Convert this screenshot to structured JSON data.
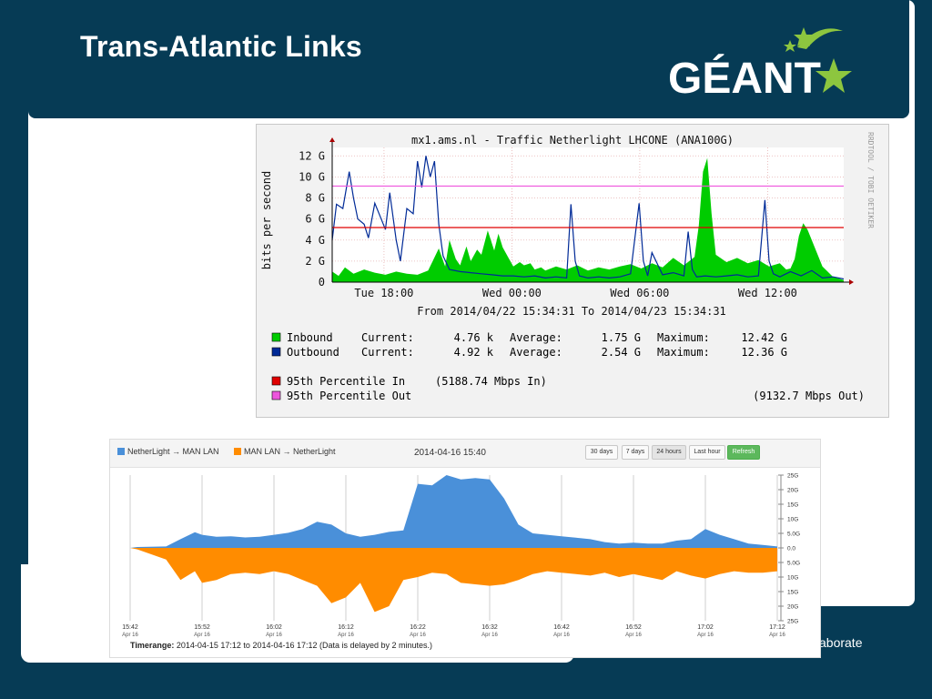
{
  "slide": {
    "title": "Trans-Atlantic Links",
    "logo_text": "GÉANT",
    "footer_text": "aborate",
    "colors": {
      "background": "#063b55",
      "logo_star": "#8dc63f"
    }
  },
  "chart_data": [
    {
      "type": "area",
      "title": "mx1.ams.nl - Traffic Netherlight LHCONE (ANA100G)",
      "ylabel": "bits per second",
      "side_label": "RRDTOOL / TOBI OETIKER",
      "y_ticks": [
        "12 G",
        "10 G",
        "8 G",
        "6 G",
        "4 G",
        "2 G",
        "0"
      ],
      "y_tick_values": [
        12,
        10,
        8,
        6,
        4,
        2,
        0
      ],
      "ylim": [
        0,
        12.8
      ],
      "x_ticks": [
        "Tue 18:00",
        "Wed 00:00",
        "Wed 06:00",
        "Wed 12:00"
      ],
      "x_tick_hours": [
        2.43,
        8.43,
        14.43,
        20.43
      ],
      "xlim_hours": [
        0,
        24
      ],
      "time_range": "From 2014/04/22 15:34:31 To 2014/04/23 15:34:31",
      "series": [
        {
          "name": "Inbound",
          "color": "#00cc00",
          "current": "4.76 k",
          "average": "1.75 G",
          "maximum": "12.42 G",
          "x": [
            0,
            0.3,
            0.6,
            1.0,
            1.5,
            2.0,
            2.5,
            3.0,
            3.5,
            4.0,
            4.5,
            5.0,
            5.3,
            5.5,
            5.8,
            6.0,
            6.3,
            6.5,
            6.8,
            7.0,
            7.3,
            7.6,
            7.8,
            8.0,
            8.3,
            8.5,
            8.8,
            9.0,
            9.3,
            9.5,
            9.8,
            10.0,
            10.5,
            11.0,
            11.5,
            12.0,
            12.5,
            13.0,
            13.5,
            14.0,
            14.5,
            15.0,
            15.5,
            16.0,
            16.5,
            17.0,
            17.2,
            17.4,
            17.6,
            17.8,
            18.0,
            18.5,
            19.0,
            19.5,
            20.0,
            20.5,
            21.0,
            21.3,
            21.5,
            21.7,
            21.9,
            22.1,
            22.3,
            22.6,
            23.0,
            23.5,
            24.0
          ],
          "values": [
            1.0,
            0.6,
            1.4,
            0.8,
            1.2,
            0.9,
            0.7,
            1.0,
            0.8,
            0.7,
            1.1,
            3.2,
            1.5,
            4.0,
            2.2,
            1.6,
            3.4,
            2.0,
            3.1,
            2.6,
            4.9,
            3.0,
            4.6,
            3.3,
            2.2,
            1.5,
            1.9,
            1.6,
            1.8,
            1.2,
            1.4,
            1.1,
            1.5,
            1.2,
            1.6,
            1.1,
            1.4,
            1.2,
            1.5,
            1.7,
            1.3,
            1.8,
            1.4,
            2.3,
            1.6,
            2.4,
            5.4,
            10.5,
            11.8,
            6.5,
            2.6,
            1.9,
            2.3,
            1.8,
            2.1,
            1.5,
            1.8,
            1.2,
            1.3,
            2.2,
            4.4,
            5.6,
            5.0,
            3.5,
            1.5,
            0.5,
            0.2
          ]
        },
        {
          "name": "Outbound",
          "color": "#002a97",
          "current": "4.92 k",
          "average": "2.54 G",
          "maximum": "12.36 G",
          "x": [
            0,
            0.2,
            0.5,
            0.8,
            1.0,
            1.2,
            1.5,
            1.7,
            2.0,
            2.2,
            2.5,
            2.7,
            3.0,
            3.2,
            3.5,
            3.8,
            4.0,
            4.2,
            4.4,
            4.6,
            4.8,
            5.0,
            5.2,
            5.5,
            6.0,
            6.5,
            7.0,
            7.5,
            8.0,
            8.5,
            9.0,
            9.5,
            10.0,
            10.5,
            11.0,
            11.2,
            11.4,
            11.6,
            12.0,
            12.5,
            13.0,
            13.5,
            14.0,
            14.4,
            14.6,
            14.8,
            15.0,
            15.5,
            16.0,
            16.5,
            16.7,
            16.9,
            17.1,
            17.5,
            18.0,
            18.5,
            19.0,
            19.5,
            20.0,
            20.3,
            20.5,
            20.7,
            21.0,
            21.5,
            22.0,
            22.5,
            23.0,
            23.5,
            24.0
          ],
          "values": [
            4.0,
            7.4,
            7.0,
            10.5,
            8.0,
            6.0,
            5.5,
            4.2,
            7.5,
            6.5,
            5.0,
            8.5,
            4.0,
            2.0,
            7.0,
            6.5,
            11.5,
            9.0,
            12.0,
            10.0,
            11.5,
            5.5,
            2.5,
            1.2,
            1.0,
            0.9,
            0.8,
            0.7,
            0.6,
            0.6,
            0.5,
            0.6,
            0.4,
            0.5,
            0.4,
            7.4,
            2.0,
            0.6,
            0.4,
            0.5,
            0.4,
            0.5,
            0.8,
            7.5,
            2.0,
            0.6,
            2.8,
            0.7,
            0.9,
            0.6,
            4.8,
            1.2,
            0.5,
            0.6,
            0.5,
            0.6,
            0.7,
            0.5,
            0.6,
            7.8,
            2.0,
            0.8,
            0.5,
            1.0,
            0.6,
            1.1,
            0.4,
            0.5,
            0.3
          ]
        },
        {
          "name": "95th Percentile In",
          "color": "#e00000",
          "value": 5.19,
          "label": "(5188.74 Mbps In)"
        },
        {
          "name": "95th Percentile Out",
          "color": "#ee55dd",
          "value": 9.13,
          "label": "(9132.7 Mbps Out)"
        }
      ],
      "legend_labels": {
        "current": "Current:",
        "average": "Average:",
        "maximum": "Maximum:"
      }
    },
    {
      "type": "area",
      "date": "2014-04-16 15:40",
      "buttons": [
        "30 days",
        "7 days",
        "24 hours",
        "Last hour",
        "Refresh"
      ],
      "active_button": "24 hours",
      "timerange_label": "Timerange:",
      "timerange": "2014-04-15 17:12 to 2014-04-16 17:12 (Data is delayed by 2 minutes.)",
      "y_ticks": [
        "25G",
        "20G",
        "15G",
        "10G",
        "5.0G",
        "0.0",
        "5.0G",
        "10G",
        "15G",
        "20G",
        "25G"
      ],
      "y_tick_values": [
        25,
        20,
        15,
        10,
        5,
        0,
        -5,
        -10,
        -15,
        -20,
        -25
      ],
      "ylim": [
        -25,
        25
      ],
      "x_ticks": [
        {
          "time": "15:42",
          "date": "Apr 16"
        },
        {
          "time": "15:52",
          "date": "Apr 16"
        },
        {
          "time": "16:02",
          "date": "Apr 16"
        },
        {
          "time": "16:12",
          "date": "Apr 16"
        },
        {
          "time": "16:22",
          "date": "Apr 16"
        },
        {
          "time": "16:32",
          "date": "Apr 16"
        },
        {
          "time": "16:42",
          "date": "Apr 16"
        },
        {
          "time": "16:52",
          "date": "Apr 16"
        },
        {
          "time": "17:02",
          "date": "Apr 16"
        },
        {
          "time": "17:12",
          "date": "Apr 16"
        }
      ],
      "xlim_minutes": [
        0,
        90
      ],
      "series": [
        {
          "name": "NetherLight → MAN LAN",
          "color": "#4a90d9",
          "x": [
            0,
            1,
            5,
            7,
            9,
            10,
            12,
            14,
            16,
            18,
            20,
            22,
            24,
            26,
            28,
            30,
            32,
            34,
            36,
            38,
            40,
            42,
            44,
            46,
            48,
            50,
            52,
            54,
            56,
            58,
            60,
            62,
            64,
            66,
            68,
            70,
            72,
            74,
            76,
            78,
            80,
            82,
            84,
            86,
            88,
            90
          ],
          "values": [
            0,
            0.3,
            0.5,
            3.0,
            5.4,
            4.5,
            3.8,
            4.0,
            3.6,
            3.8,
            4.5,
            5.2,
            6.5,
            9.0,
            8.0,
            5.0,
            3.8,
            4.5,
            5.5,
            6.0,
            22.0,
            21.5,
            25.0,
            23.5,
            24.0,
            23.5,
            17.0,
            8.0,
            5.0,
            4.5,
            4.0,
            3.5,
            3.0,
            2.0,
            1.5,
            1.8,
            1.5,
            1.5,
            2.5,
            3.0,
            6.5,
            4.5,
            3.0,
            1.5,
            1.0,
            0.5
          ]
        },
        {
          "name": "MAN LAN → NetherLight",
          "color": "#ff8c00",
          "x": [
            0,
            1,
            5,
            7,
            9,
            10,
            12,
            14,
            16,
            18,
            20,
            22,
            24,
            26,
            28,
            30,
            32,
            34,
            36,
            38,
            40,
            42,
            44,
            46,
            48,
            50,
            52,
            54,
            56,
            58,
            60,
            62,
            64,
            66,
            68,
            70,
            72,
            74,
            76,
            78,
            80,
            82,
            84,
            86,
            88,
            90
          ],
          "values": [
            0,
            -0.5,
            -4.0,
            -11.0,
            -8.0,
            -12.0,
            -11.0,
            -9.0,
            -8.5,
            -9.0,
            -8.0,
            -9.0,
            -11.0,
            -13.0,
            -19.0,
            -17.0,
            -12.0,
            -22.0,
            -20.0,
            -11.0,
            -10.0,
            -8.5,
            -9.0,
            -12.0,
            -12.5,
            -13.0,
            -12.5,
            -11.0,
            -9.0,
            -8.0,
            -8.5,
            -9.0,
            -9.5,
            -8.5,
            -10.0,
            -9.0,
            -10.0,
            -11.0,
            -8.0,
            -9.5,
            -10.5,
            -9.0,
            -8.0,
            -8.5,
            -8.5,
            -8.0
          ]
        }
      ]
    }
  ]
}
